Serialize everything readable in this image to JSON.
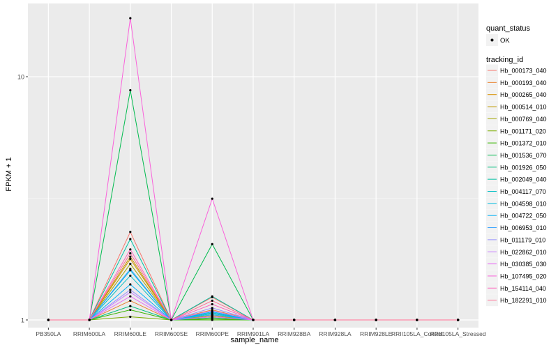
{
  "chart_data": {
    "type": "line",
    "xlabel": "sample_name",
    "ylabel": "FPKM + 1",
    "y_scale": "log10",
    "ylim": [
      0.93,
      20
    ],
    "y_ticks": [
      1,
      10
    ],
    "y_tick_labels": [
      "1",
      "10"
    ],
    "grid": true,
    "legend_position": "right",
    "categories": [
      "PB350LA",
      "RRIM600LA",
      "RRIM600LE",
      "RRIM600SE",
      "RRIM600PE",
      "RRIM901LA",
      "RRIM928BA",
      "RRIM928LA",
      "RRIM928LE",
      "RRII105LA_Control",
      "RRII105LA_Stressed"
    ],
    "status_legend": {
      "title": "quant_status",
      "items": [
        "OK"
      ]
    },
    "series_legend_title": "tracking_id",
    "series": [
      {
        "name": "Hb_000173_040",
        "color": "#F8766D",
        "values": [
          1,
          1,
          2.3,
          1,
          1.24,
          1,
          1,
          1,
          1,
          1,
          1
        ]
      },
      {
        "name": "Hb_000193_040",
        "color": "#EA8331",
        "values": [
          1,
          1,
          1.2,
          1,
          1.1,
          1,
          1,
          1,
          1,
          1,
          1
        ]
      },
      {
        "name": "Hb_000265_040",
        "color": "#D89000",
        "values": [
          1,
          1,
          1.78,
          1,
          1.05,
          1,
          1,
          1,
          1,
          1,
          1
        ]
      },
      {
        "name": "Hb_000514_010",
        "color": "#C09B00",
        "values": [
          1,
          1,
          1.82,
          1,
          1.04,
          1,
          1,
          1,
          1,
          1,
          1
        ]
      },
      {
        "name": "Hb_000769_040",
        "color": "#A3A500",
        "values": [
          1,
          1,
          1.7,
          1,
          1.03,
          1,
          1,
          1,
          1,
          1,
          1
        ]
      },
      {
        "name": "Hb_001171_020",
        "color": "#7CAE00",
        "values": [
          1,
          1,
          1.03,
          1,
          1.01,
          1,
          1,
          1,
          1,
          1,
          1
        ]
      },
      {
        "name": "Hb_001372_010",
        "color": "#39B600",
        "values": [
          1,
          1,
          1.1,
          1,
          1.0,
          1,
          1,
          1,
          1,
          1,
          1
        ]
      },
      {
        "name": "Hb_001536_070",
        "color": "#00BB4E",
        "values": [
          1,
          1,
          8.8,
          1,
          2.05,
          1,
          1,
          1,
          1,
          1,
          1
        ]
      },
      {
        "name": "Hb_001926_050",
        "color": "#00BF7D",
        "values": [
          1,
          1,
          1.14,
          1,
          1.02,
          1,
          1,
          1,
          1,
          1,
          1
        ]
      },
      {
        "name": "Hb_002049_040",
        "color": "#00C1A3",
        "values": [
          1,
          1,
          2.15,
          1,
          1.25,
          1,
          1,
          1,
          1,
          1,
          1
        ]
      },
      {
        "name": "Hb_004117_070",
        "color": "#00BFC4",
        "values": [
          1,
          1,
          1.52,
          1,
          1.07,
          1,
          1,
          1,
          1,
          1,
          1
        ]
      },
      {
        "name": "Hb_004598_010",
        "color": "#00BAE0",
        "values": [
          1,
          1,
          1.6,
          1,
          1.06,
          1,
          1,
          1,
          1,
          1,
          1
        ]
      },
      {
        "name": "Hb_004722_050",
        "color": "#00B0F6",
        "values": [
          1,
          1,
          1.4,
          1,
          1.08,
          1,
          1,
          1,
          1,
          1,
          1
        ]
      },
      {
        "name": "Hb_006953_010",
        "color": "#35A2FF",
        "values": [
          1,
          1,
          1.62,
          1,
          1.05,
          1,
          1,
          1,
          1,
          1,
          1
        ]
      },
      {
        "name": "Hb_011179_010",
        "color": "#9590FF",
        "values": [
          1,
          1,
          1.33,
          1,
          1.12,
          1,
          1,
          1,
          1,
          1,
          1
        ]
      },
      {
        "name": "Hb_022862_010",
        "color": "#C77CFF",
        "values": [
          1,
          1,
          1.3,
          1,
          1.09,
          1,
          1,
          1,
          1,
          1,
          1
        ]
      },
      {
        "name": "Hb_030385_030",
        "color": "#E76BF3",
        "values": [
          1,
          1,
          1.25,
          1,
          1.03,
          1,
          1,
          1,
          1,
          1,
          1
        ]
      },
      {
        "name": "Hb_107495_020",
        "color": "#FA62DB",
        "values": [
          1,
          1,
          17.4,
          1,
          3.15,
          1,
          1,
          1,
          1,
          1,
          1
        ]
      },
      {
        "name": "Hb_154114_040",
        "color": "#FF62BC",
        "values": [
          1,
          1,
          1.95,
          1,
          1.16,
          1,
          1,
          1,
          1,
          1,
          1
        ]
      },
      {
        "name": "Hb_182291_010",
        "color": "#FF6C91",
        "values": [
          1,
          1,
          1.88,
          1,
          1.2,
          1,
          1,
          1,
          1,
          1,
          1
        ]
      }
    ]
  }
}
